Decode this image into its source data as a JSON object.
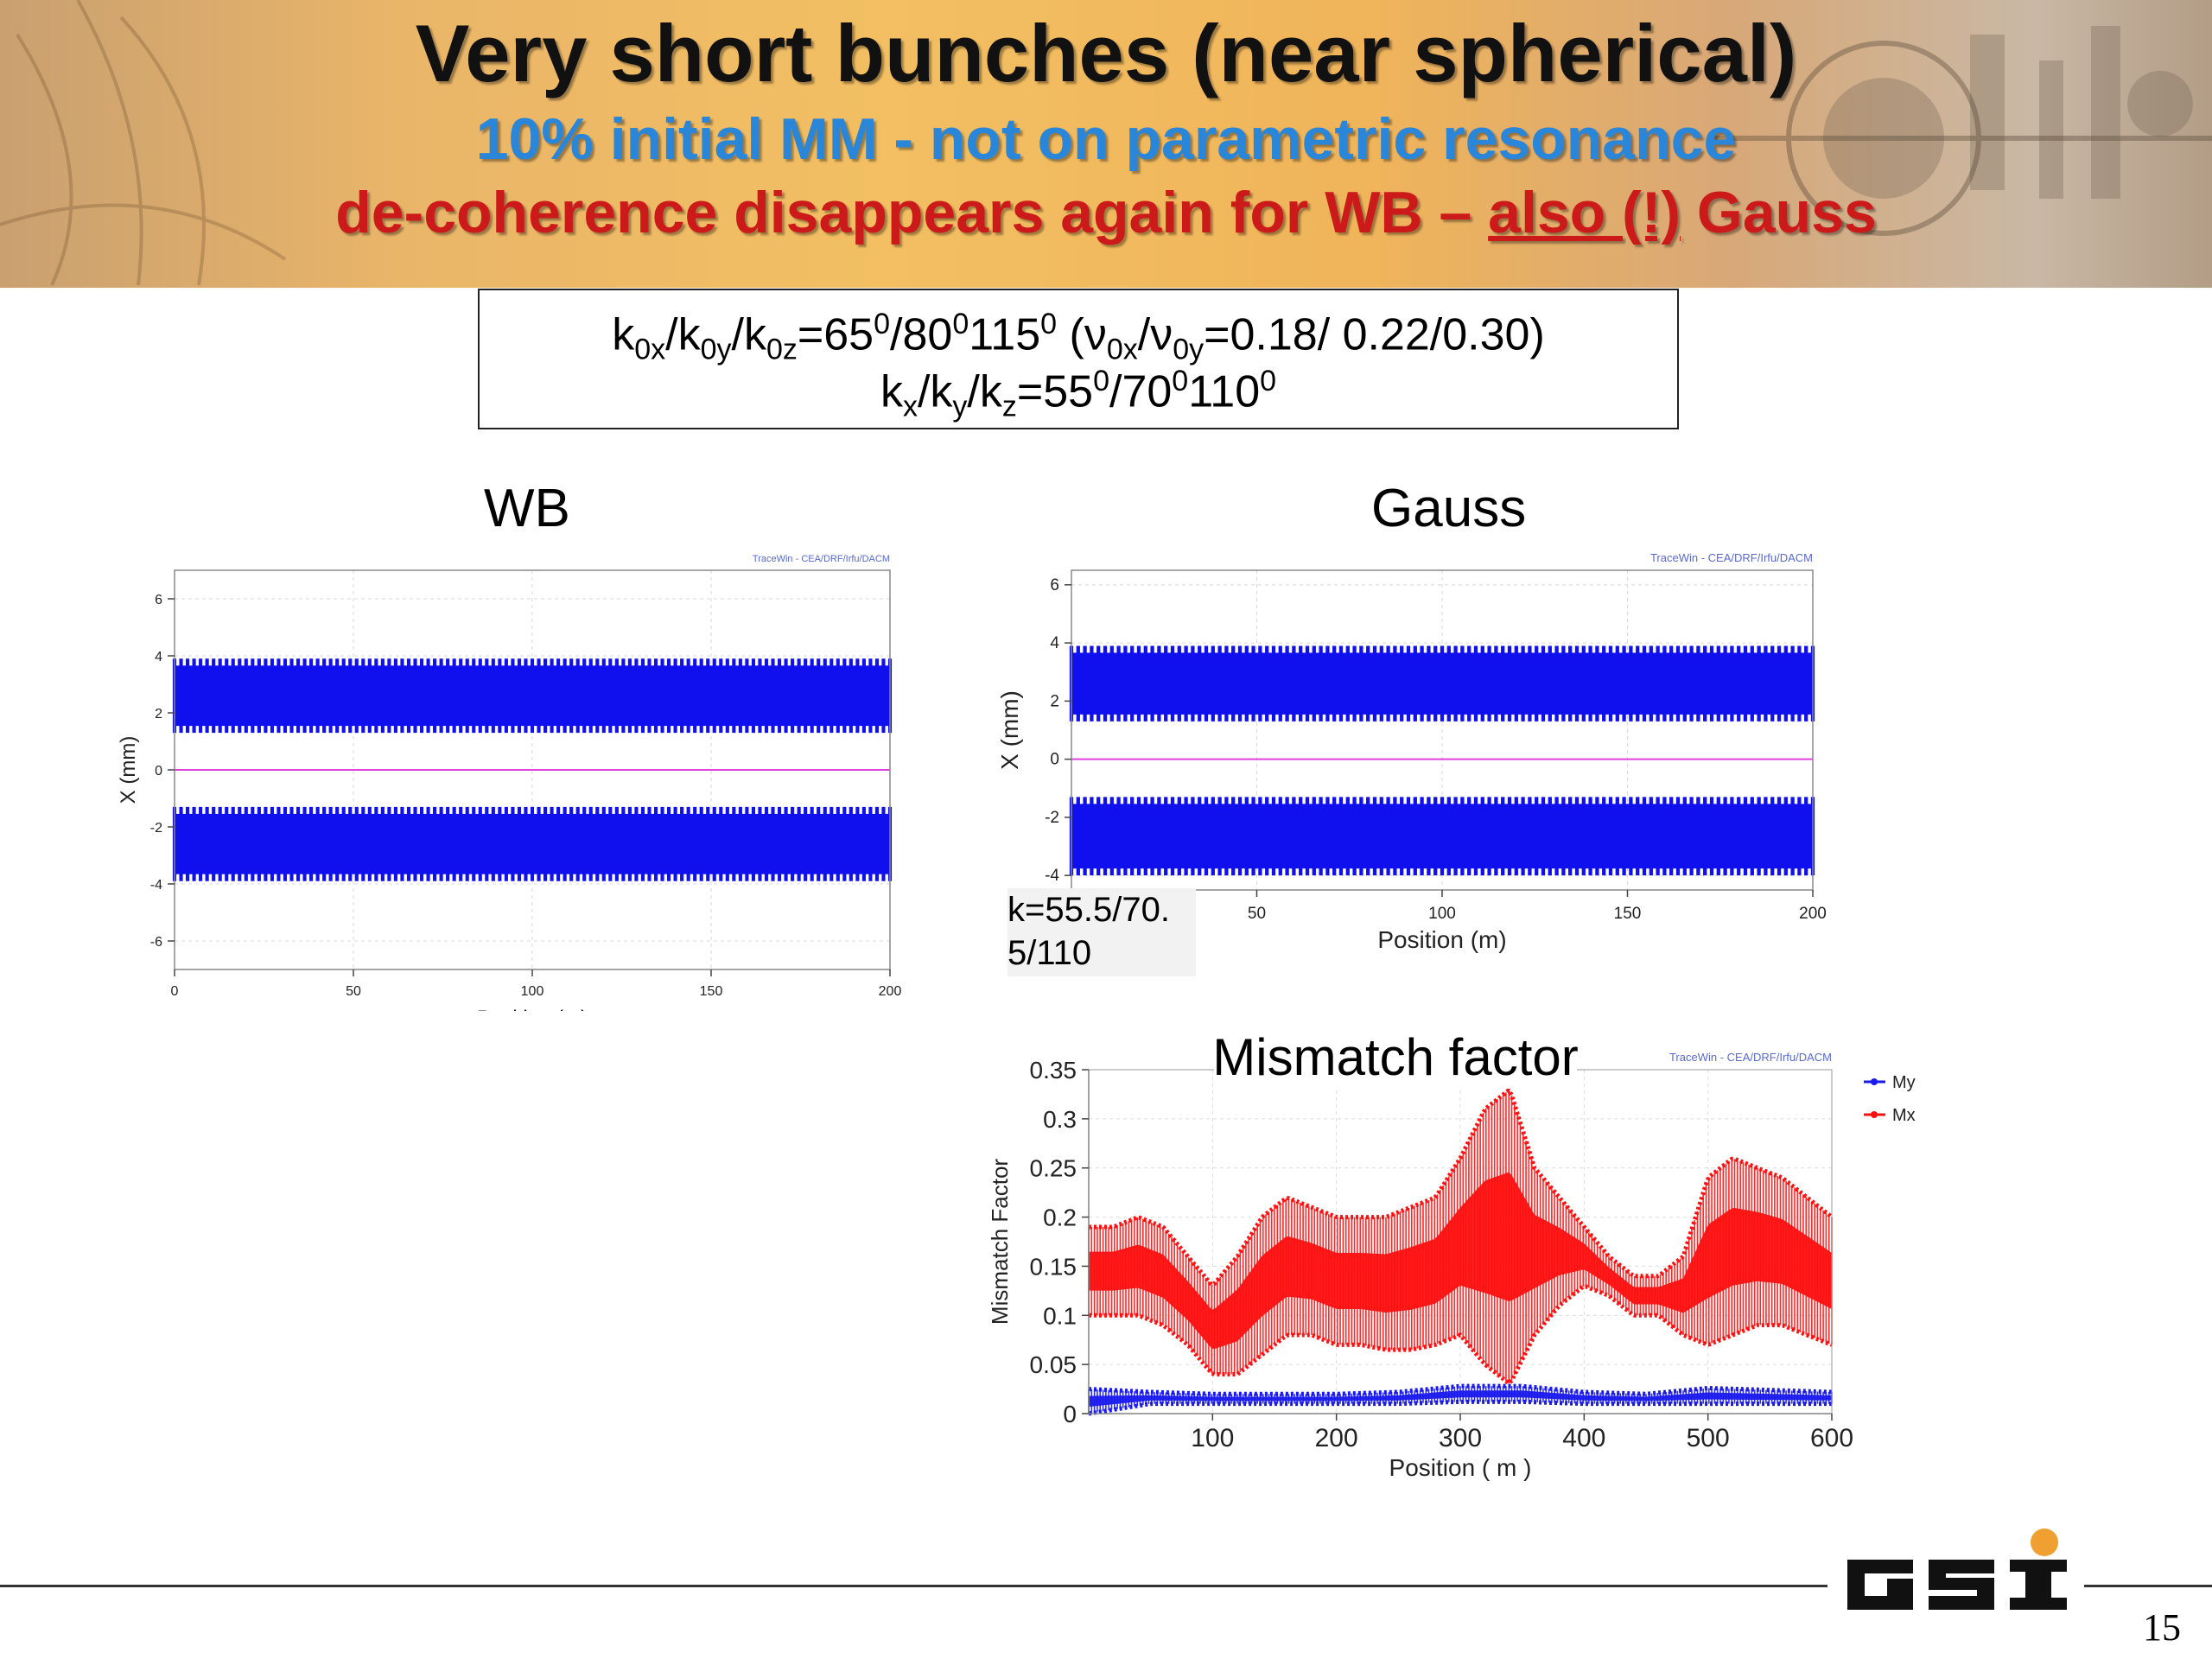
{
  "header": {
    "title": "Very short bunches (near spherical)",
    "subtitle1": "10% initial MM  - not on parametric resonance",
    "subtitle2_pre": "de-coherence disappears again for  WB – ",
    "subtitle2_underlined": "also (!)",
    "subtitle2_post": " Gauss"
  },
  "params": {
    "k": "k",
    "sub_0x": "0x",
    "sub_0y": "0y",
    "sub_0z": "0z",
    "eq1": "=65",
    "sup0": "0",
    "v1": "/80",
    "v2": "115",
    "paren_open": " (",
    "nu": "ν",
    "nu_eq": "=0.18/ 0.22/0.30)",
    "sub_x": "x",
    "sub_y": "y",
    "sub_z": "z",
    "eq2": "=55",
    "v3": "/70",
    "v4": "110",
    "slash": "/"
  },
  "panels": {
    "wb_title": "WB",
    "gauss_title": "Gauss",
    "mismatch_title": "Mismatch factor",
    "note": "k=55.5/70.\n5/110",
    "note_line1": "k=55.5/70.",
    "note_line2": "5/110"
  },
  "footer": {
    "logo_text": "GSI",
    "page_number": "15"
  },
  "colors": {
    "blue_band": "#1010ee",
    "magenta_line": "#e040e0",
    "red_series": "#ff1010",
    "blue_series": "#1a1aee",
    "title_blue": "#2a86d8",
    "title_red": "#cc1a1a",
    "logo_orange": "#f0a030"
  },
  "chart_data": [
    {
      "name": "wb",
      "type": "scatter",
      "watermark": "TraceWin - CEA/DRF/Irfu/DACM",
      "xlabel": "Position (m)",
      "ylabel": "X (mm)",
      "xlim": [
        0,
        200
      ],
      "ylim": [
        -7,
        7
      ],
      "xticks": [
        0,
        50,
        100,
        150,
        200
      ],
      "yticks": [
        -6,
        -4,
        -2,
        0,
        2,
        4,
        6
      ],
      "x_tick_labels": [
        "0",
        "50",
        "100",
        "150",
        "200"
      ],
      "y_tick_labels": [
        "-6",
        "-4",
        "-2",
        "0",
        "2",
        "4",
        "6"
      ],
      "bands": [
        {
          "series": "upper envelope",
          "x_range": [
            0,
            200
          ],
          "y_min": 1.3,
          "y_max": 3.9,
          "oscillating": true
        },
        {
          "series": "lower envelope",
          "x_range": [
            0,
            200
          ],
          "y_min": -3.9,
          "y_max": -1.3,
          "oscillating": true
        }
      ],
      "centroid": {
        "x_range": [
          0,
          200
        ],
        "y": 0
      }
    },
    {
      "name": "gauss",
      "type": "scatter",
      "watermark": "TraceWin - CEA/DRF/Irfu/DACM",
      "xlabel": "Position (m)",
      "ylabel": "X (mm)",
      "xlim": [
        0,
        200
      ],
      "ylim": [
        -4.5,
        6.5
      ],
      "xticks": [
        50,
        100,
        150,
        200
      ],
      "yticks": [
        -4,
        -2,
        0,
        2,
        4,
        6
      ],
      "x_tick_labels": [
        "50",
        "100",
        "150",
        "200"
      ],
      "y_tick_labels": [
        "-4",
        "-2",
        "0",
        "2",
        "4",
        "6"
      ],
      "bands": [
        {
          "series": "upper envelope",
          "x_range": [
            0,
            200
          ],
          "y_min": 1.3,
          "y_max": 3.9,
          "oscillating": true
        },
        {
          "series": "lower envelope",
          "x_range": [
            0,
            200
          ],
          "y_min": -4.0,
          "y_max": -1.3,
          "oscillating": true
        }
      ],
      "centroid": {
        "x_range": [
          0,
          200
        ],
        "y": 0
      }
    },
    {
      "name": "mismatch",
      "type": "line",
      "title": "Mismatch factor",
      "watermark": "TraceWin - CEA/DRF/Irfu/DACM",
      "xlabel": "Position ( m )",
      "ylabel": "Mismatch Factor",
      "xlim": [
        0,
        600
      ],
      "ylim": [
        0,
        0.35
      ],
      "xticks": [
        100,
        200,
        300,
        400,
        500,
        600
      ],
      "yticks": [
        0,
        0.05,
        0.1,
        0.15,
        0.2,
        0.25,
        0.3,
        0.35
      ],
      "x_tick_labels": [
        "100",
        "200",
        "300",
        "400",
        "500",
        "600"
      ],
      "y_tick_labels": [
        "0",
        "0.05",
        "0.1",
        "0.15",
        "0.2",
        "0.25",
        "0.3",
        "0.35"
      ],
      "legend": [
        "My",
        "Mx"
      ],
      "legend_position": "right",
      "series": [
        {
          "name": "Mx",
          "x": [
            0,
            20,
            40,
            60,
            80,
            100,
            120,
            140,
            160,
            180,
            200,
            220,
            240,
            260,
            280,
            300,
            320,
            340,
            360,
            380,
            400,
            420,
            440,
            460,
            480,
            500,
            520,
            540,
            560,
            580,
            600
          ],
          "upper": [
            0.19,
            0.19,
            0.2,
            0.19,
            0.16,
            0.13,
            0.16,
            0.2,
            0.22,
            0.21,
            0.2,
            0.2,
            0.2,
            0.21,
            0.22,
            0.26,
            0.31,
            0.33,
            0.25,
            0.22,
            0.19,
            0.16,
            0.14,
            0.14,
            0.16,
            0.24,
            0.26,
            0.25,
            0.24,
            0.22,
            0.2
          ],
          "lower": [
            0.1,
            0.1,
            0.1,
            0.09,
            0.07,
            0.04,
            0.04,
            0.06,
            0.08,
            0.08,
            0.07,
            0.07,
            0.065,
            0.065,
            0.07,
            0.08,
            0.05,
            0.03,
            0.08,
            0.11,
            0.13,
            0.12,
            0.1,
            0.1,
            0.08,
            0.07,
            0.08,
            0.09,
            0.09,
            0.08,
            0.07
          ]
        },
        {
          "name": "My",
          "x": [
            0,
            50,
            100,
            150,
            200,
            250,
            300,
            350,
            400,
            450,
            500,
            550,
            600
          ],
          "upper": [
            0.025,
            0.022,
            0.02,
            0.02,
            0.02,
            0.022,
            0.028,
            0.028,
            0.022,
            0.02,
            0.026,
            0.024,
            0.022
          ],
          "lower": [
            0.0,
            0.01,
            0.01,
            0.01,
            0.01,
            0.01,
            0.012,
            0.012,
            0.01,
            0.01,
            0.01,
            0.01,
            0.01
          ]
        }
      ]
    }
  ]
}
